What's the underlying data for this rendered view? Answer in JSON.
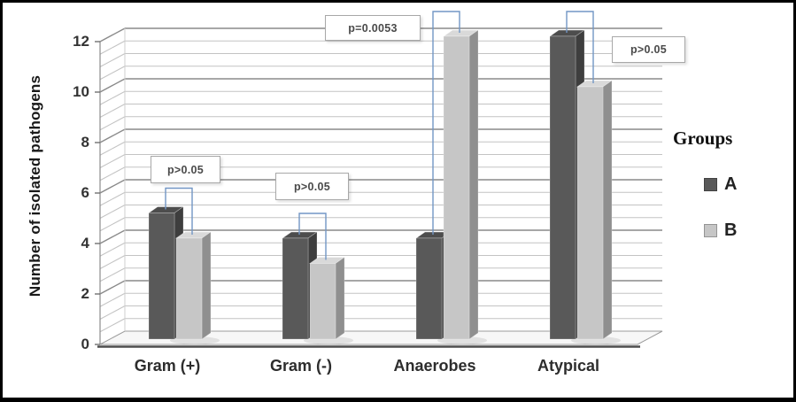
{
  "chart_data": {
    "type": "bar",
    "style_3d": true,
    "title": "",
    "ylabel": "Number of isolated pathogens",
    "xlabel": "",
    "categories": [
      "Gram (+)",
      "Gram (-)",
      "Anaerobes",
      "Atypical"
    ],
    "series": [
      {
        "name": "A",
        "values": [
          5,
          4,
          4,
          12
        ],
        "front_color": "#595959",
        "side_color": "#3e3e3e",
        "top_color": "#4d4d4d"
      },
      {
        "name": "B",
        "values": [
          4,
          3,
          12,
          10
        ],
        "front_color": "#c6c6c6",
        "side_color": "#8f8f8f",
        "top_color": "#d9d9d9"
      }
    ],
    "ylim": [
      0,
      12
    ],
    "yticks": [
      0,
      2,
      4,
      6,
      8,
      10,
      12
    ],
    "ytick_step": 2,
    "minor_gridline_step": 0.5,
    "grid": true,
    "legend": {
      "title": "Groups",
      "position": "right"
    },
    "annotations": [
      {
        "category": "Gram (+)",
        "label": "p>0.05"
      },
      {
        "category": "Gram (-)",
        "label": "p>0.05"
      },
      {
        "category": "Anaerobes",
        "label": "p=0.0053"
      },
      {
        "category": "Atypical",
        "label": "p>0.05"
      }
    ],
    "colors": {
      "bracket_blue": "#7296c5",
      "major_gridline": "#8a8a8a",
      "minor_gridline": "#c3c3c3",
      "axis_line": "#4d4d4d",
      "floor_fill": "#f7f7f7"
    }
  }
}
